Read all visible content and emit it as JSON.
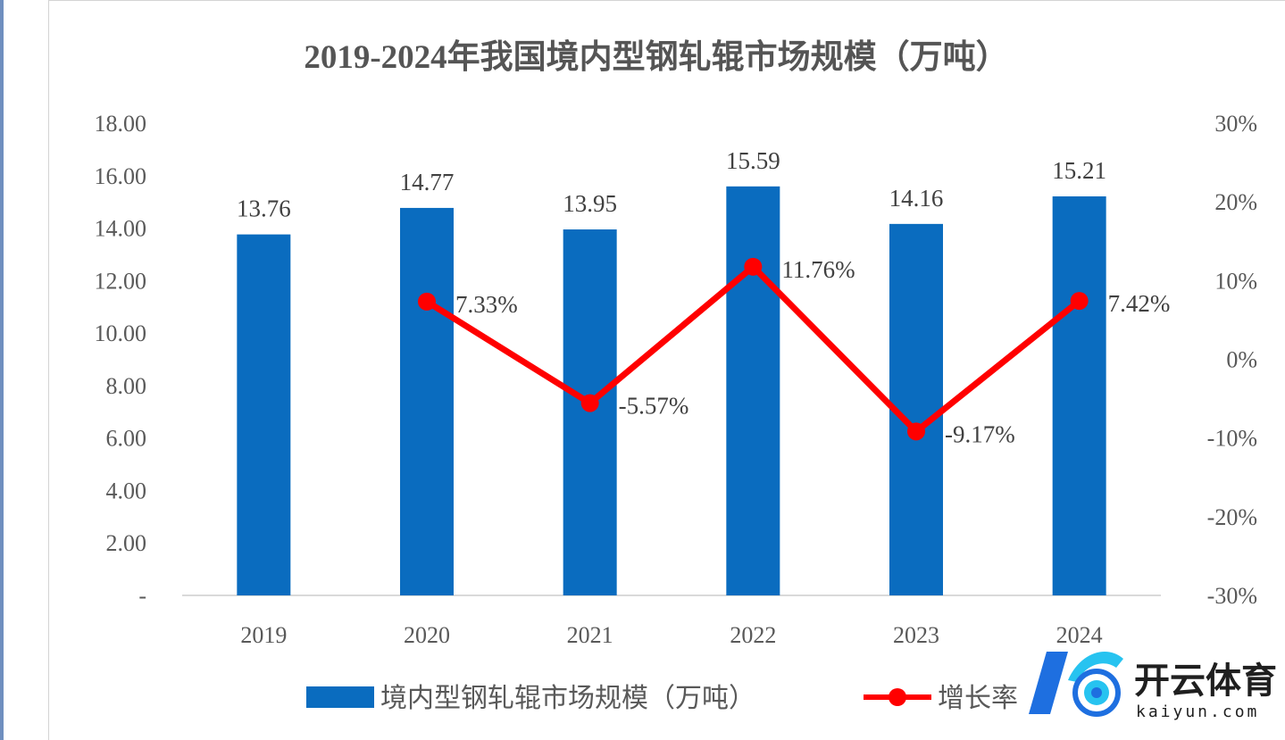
{
  "chart_data": {
    "type": "bar",
    "title": "2019-2024年我国境内型钢轧辊市场规模（万吨）",
    "categories": [
      "2019",
      "2020",
      "2021",
      "2022",
      "2023",
      "2024"
    ],
    "series": [
      {
        "name": "境内型钢轧辊市场规模（万吨）",
        "type": "bar",
        "axis": "left",
        "values": [
          13.76,
          14.77,
          13.95,
          15.59,
          14.16,
          15.21
        ],
        "labels": [
          "13.76",
          "14.77",
          "13.95",
          "15.59",
          "14.16",
          "15.21"
        ],
        "color": "#0a6cbf"
      },
      {
        "name": "增长率",
        "type": "line",
        "axis": "right",
        "values": [
          null,
          7.33,
          -5.57,
          11.76,
          -9.17,
          7.42
        ],
        "labels": [
          "",
          "7.33%",
          "-5.57%",
          "11.76%",
          "-9.17%",
          "7.42%"
        ],
        "color": "#ff0000"
      }
    ],
    "y_left": {
      "ylim": [
        0,
        18
      ],
      "ticks": [
        0,
        2,
        4,
        6,
        8,
        10,
        12,
        14,
        16,
        18
      ],
      "tick_labels": [
        "-",
        "2.00",
        "4.00",
        "6.00",
        "8.00",
        "10.00",
        "12.00",
        "14.00",
        "16.00",
        "18.00"
      ]
    },
    "y_right": {
      "ylim": [
        -30,
        30
      ],
      "ticks": [
        -30,
        -20,
        -10,
        0,
        10,
        20,
        30
      ],
      "tick_labels": [
        "-30%",
        "-20%",
        "-10%",
        "0%",
        "10%",
        "20%",
        "30%"
      ]
    },
    "legend": [
      "境内型钢轧辊市场规模（万吨）",
      "增长率"
    ],
    "legend_position": "bottom",
    "grid": false
  },
  "watermark": {
    "text": "开云体育",
    "subtext": "kaiyun.com",
    "colors": {
      "blue": "#1e6fe0",
      "cyan": "#27c3f0"
    }
  }
}
